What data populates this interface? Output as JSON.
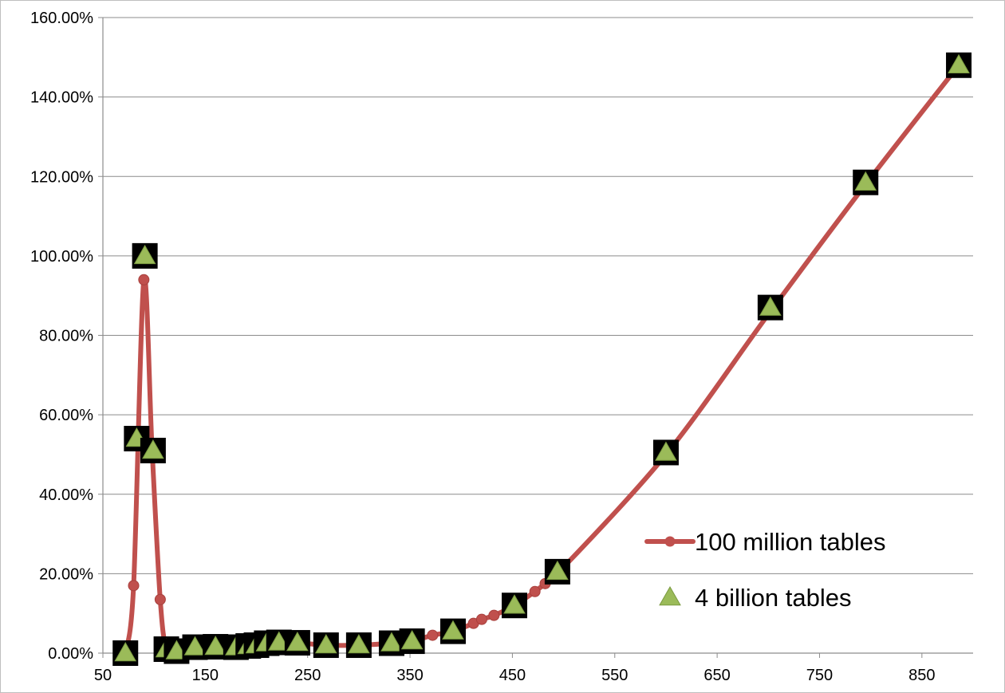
{
  "chart_data": {
    "type": "line",
    "title": "",
    "xlabel": "",
    "ylabel": "",
    "xlim": [
      50,
      900
    ],
    "ylim": [
      0,
      160
    ],
    "x_ticks": [
      50,
      150,
      250,
      350,
      450,
      550,
      650,
      750,
      850
    ],
    "x_tick_labels": [
      "50",
      "150",
      "250",
      "350",
      "450",
      "550",
      "650",
      "750",
      "850"
    ],
    "y_ticks": [
      0,
      20,
      40,
      60,
      80,
      100,
      120,
      140,
      160
    ],
    "y_tick_labels": [
      "0.00%",
      "20.00%",
      "40.00%",
      "60.00%",
      "80.00%",
      "100.00%",
      "120.00%",
      "140.00%",
      "160.00%"
    ],
    "grid": true,
    "legend_position": "lower-right",
    "series": [
      {
        "name": "100 million tables",
        "marker": "circle",
        "color": "#C0504D",
        "points": [
          [
            72,
            0.0
          ],
          [
            80,
            17.0
          ],
          [
            90,
            94.0
          ],
          [
            98,
            51.5
          ],
          [
            106,
            13.5
          ],
          [
            112,
            1.2
          ],
          [
            122,
            0.8
          ],
          [
            140,
            1.5
          ],
          [
            160,
            1.6
          ],
          [
            180,
            1.5
          ],
          [
            192,
            1.8
          ],
          [
            200,
            2.0
          ],
          [
            210,
            2.2
          ],
          [
            222,
            2.5
          ],
          [
            240,
            2.6
          ],
          [
            268,
            2.0
          ],
          [
            300,
            2.0
          ],
          [
            332,
            2.5
          ],
          [
            352,
            3.0
          ],
          [
            372,
            4.5
          ],
          [
            392,
            5.5
          ],
          [
            412,
            7.5
          ],
          [
            420,
            8.5
          ],
          [
            432,
            9.5
          ],
          [
            452,
            12.0
          ],
          [
            472,
            15.5
          ],
          [
            482,
            17.5
          ],
          [
            494,
            20.0
          ],
          [
            600,
            50.0
          ],
          [
            702,
            86.0
          ],
          [
            795,
            118.0
          ],
          [
            886,
            148.0
          ]
        ]
      },
      {
        "name": "4 billion tables",
        "marker": "triangle",
        "color": "#9BBB59",
        "points": [
          [
            72,
            0.0
          ],
          [
            83,
            54.0
          ],
          [
            91,
            100.0
          ],
          [
            99,
            51.0
          ],
          [
            112,
            1.0
          ],
          [
            122,
            0.5
          ],
          [
            140,
            1.5
          ],
          [
            160,
            1.6
          ],
          [
            180,
            1.5
          ],
          [
            192,
            1.8
          ],
          [
            200,
            2.0
          ],
          [
            210,
            2.5
          ],
          [
            222,
            2.7
          ],
          [
            240,
            2.6
          ],
          [
            268,
            2.0
          ],
          [
            300,
            2.0
          ],
          [
            332,
            2.5
          ],
          [
            352,
            3.0
          ],
          [
            392,
            5.5
          ],
          [
            452,
            12.0
          ],
          [
            494,
            20.5
          ],
          [
            600,
            50.5
          ],
          [
            702,
            87.0
          ],
          [
            795,
            118.5
          ],
          [
            886,
            148.0
          ]
        ]
      }
    ]
  }
}
